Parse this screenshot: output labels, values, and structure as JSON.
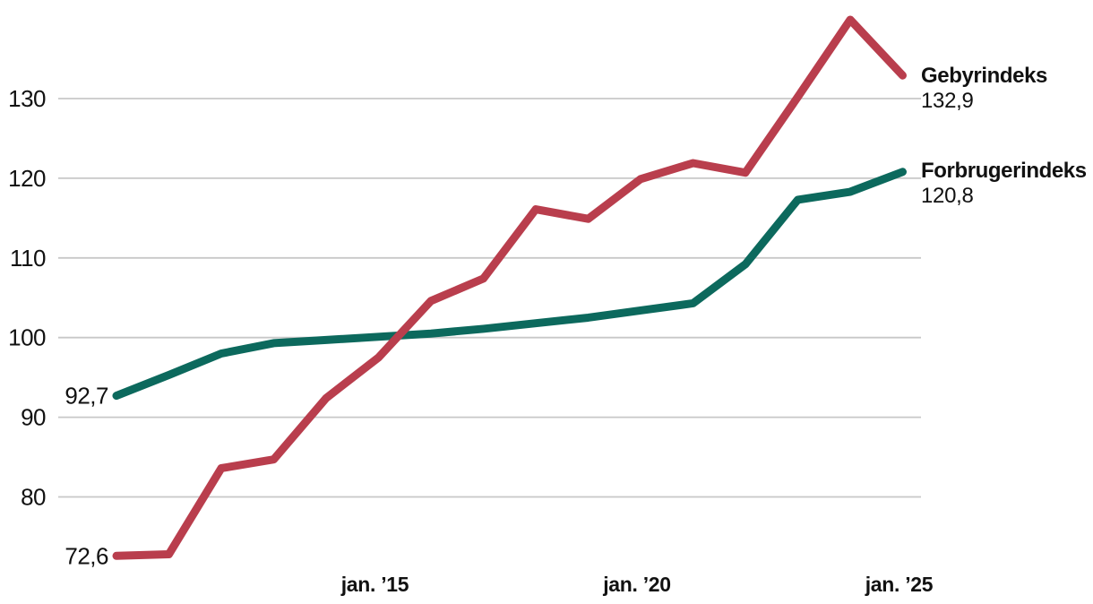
{
  "page": {
    "background": "#ffffff",
    "text_color": "#111111",
    "gridline_color": "#c8c8c8"
  },
  "chart_data": {
    "type": "line",
    "x_years": [
      2010,
      2011,
      2012,
      2013,
      2014,
      2015,
      2016,
      2017,
      2018,
      2019,
      2020,
      2021,
      2022,
      2023,
      2024,
      2025
    ],
    "xlim": [
      2010,
      2025
    ],
    "ylim": [
      71,
      141
    ],
    "grid": "horizontal-only",
    "legend_position": "right of line ends",
    "yticks": [
      80,
      90,
      100,
      110,
      120,
      130
    ],
    "xticks": [
      {
        "year": 2015,
        "label": "jan. ’15"
      },
      {
        "year": 2020,
        "label": "jan. ’20"
      },
      {
        "year": 2025,
        "label": "jan. ’25"
      }
    ],
    "series": [
      {
        "name": "Gebyrindeks",
        "color": "#b93e4d",
        "start_label": "72,6",
        "end_label": "132,9",
        "values": [
          72.6,
          72.8,
          83.6,
          84.7,
          92.4,
          97.5,
          104.6,
          107.4,
          116.1,
          114.9,
          119.9,
          121.9,
          120.7,
          130.2,
          139.9,
          132.9
        ]
      },
      {
        "name": "Forbrugerindeks",
        "color": "#0c695d",
        "start_label": "92,7",
        "end_label": "120,8",
        "values": [
          92.7,
          95.3,
          98.0,
          99.3,
          99.7,
          100.1,
          100.5,
          101.1,
          101.8,
          102.5,
          103.4,
          104.3,
          109.2,
          117.3,
          118.3,
          120.8
        ]
      }
    ]
  }
}
